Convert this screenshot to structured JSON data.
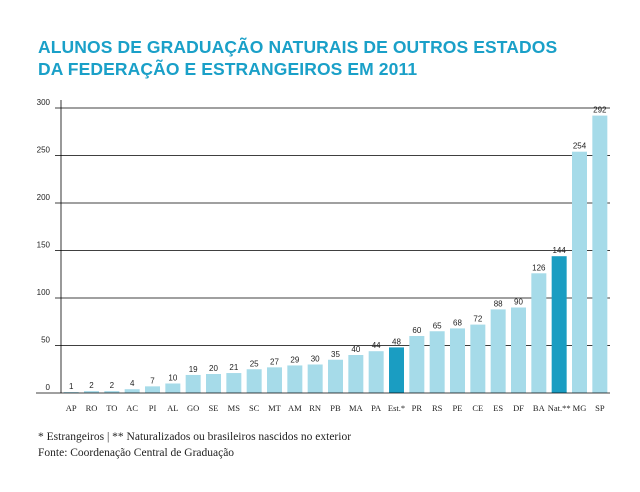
{
  "title": {
    "line1": "ALUNOS DE GRADUAÇÃO NATURAIS DE OUTROS ESTADOS",
    "line2": "DA FEDERAÇÃO E ESTRANGEIROS EM 2011"
  },
  "colors": {
    "title": "#1aa0c8",
    "bar_regular": "#a6dbe9",
    "bar_highlight": "#1a9dc2",
    "axis": "#000000",
    "text": "#222222"
  },
  "chart_data": {
    "type": "bar",
    "title": "ALUNOS DE GRADUAÇÃO NATURAIS DE OUTROS ESTADOS DA FEDERAÇÃO E ESTRANGEIROS EM 2011",
    "xlabel": "",
    "ylabel": "",
    "ylim": [
      0,
      300
    ],
    "yticks": [
      0,
      50,
      100,
      150,
      200,
      250,
      300
    ],
    "grid": true,
    "categories": [
      "AP",
      "RO",
      "TO",
      "AC",
      "PI",
      "AL",
      "GO",
      "SE",
      "MS",
      "SC",
      "MT",
      "AM",
      "RN",
      "PB",
      "MA",
      "PA",
      "Est.*",
      "PR",
      "RS",
      "PE",
      "CE",
      "ES",
      "DF",
      "BA",
      "Nat.**",
      "MG",
      "SP"
    ],
    "values": [
      1,
      2,
      2,
      4,
      7,
      10,
      19,
      20,
      21,
      25,
      27,
      29,
      30,
      35,
      40,
      44,
      48,
      60,
      65,
      68,
      72,
      88,
      90,
      126,
      144,
      254,
      292
    ],
    "highlighted": [
      "Est.*",
      "Nat.**"
    ]
  },
  "footnotes": {
    "line1": "* Estrangeiros | ** Naturalizados ou brasileiros nascidos no exterior",
    "line2": "Fonte: Coordenação Central de Graduação"
  }
}
